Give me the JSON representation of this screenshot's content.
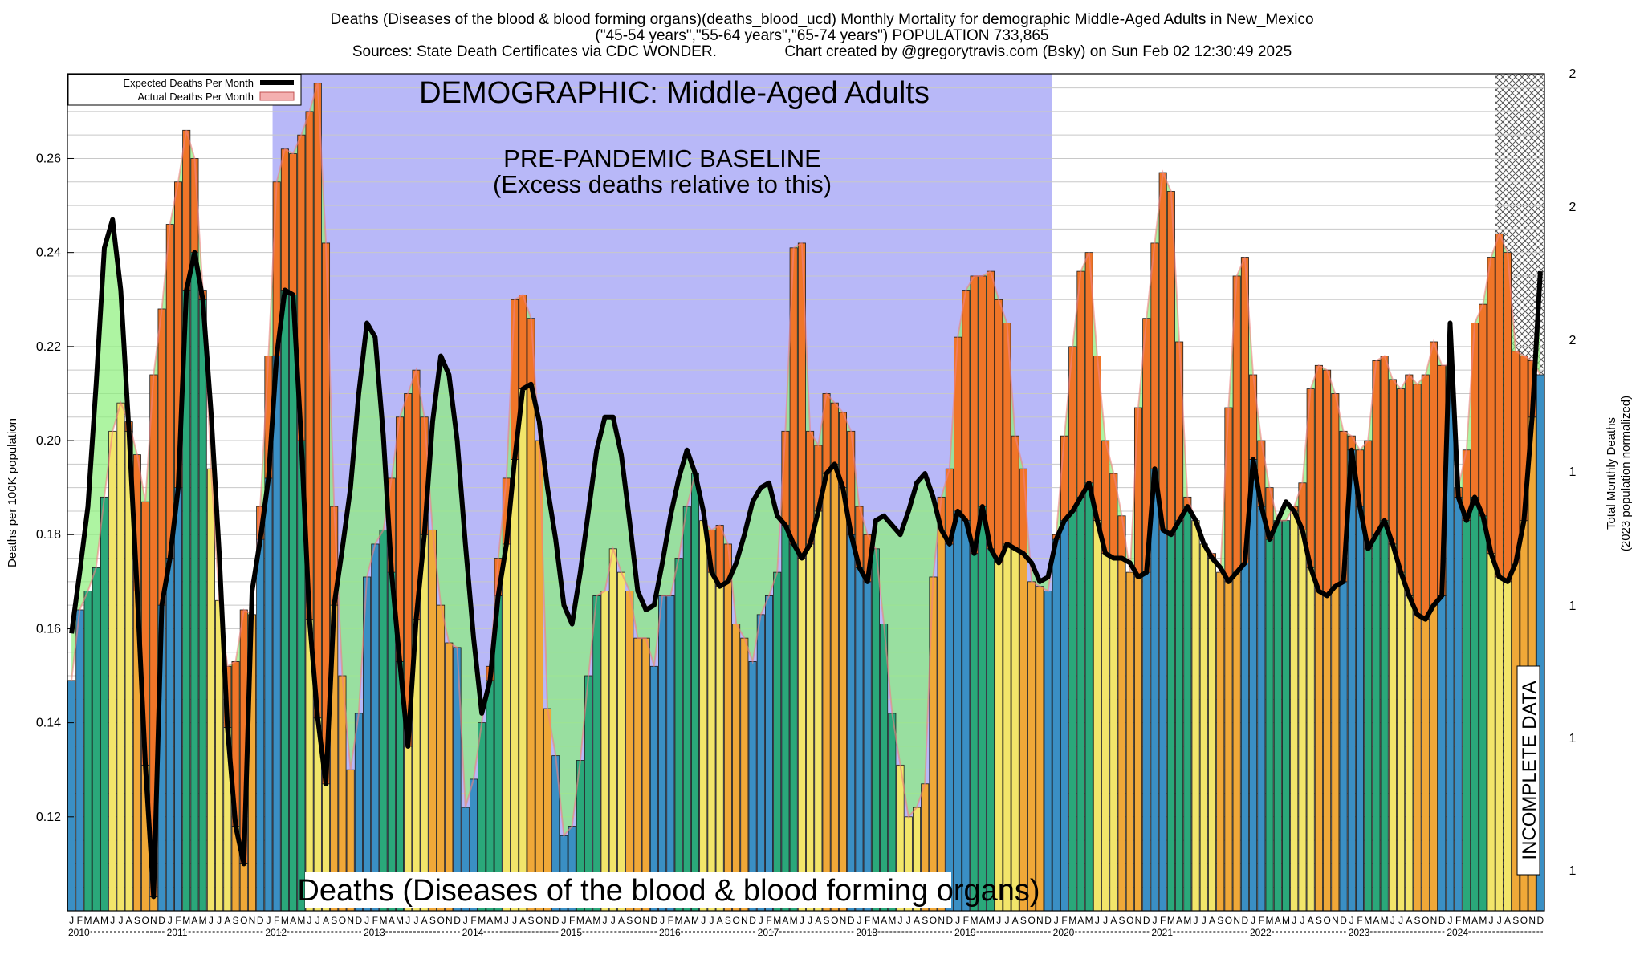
{
  "header": {
    "line1": "Deaths (Diseases of the blood & blood forming organs)(deaths_blood_ucd) Monthly Mortality for demographic Middle-Aged Adults in New_Mexico",
    "line2": "(\"45-54 years\",\"55-64 years\",\"65-74 years\") POPULATION 733,865",
    "line3": "Sources: State Death Certificates via CDC WONDER.                Chart created by @gregorytravis.com (Bsky) on Sun Feb 02 12:30:49 2025"
  },
  "chart_data": {
    "type": "bar",
    "title": "DEMOGRAPHIC: Middle-Aged Adults",
    "baseline_label_1": "PRE-PANDEMIC BASELINE",
    "baseline_label_2": "(Excess deaths relative to this)",
    "bottom_label": "Deaths (Diseases of the blood & blood forming organs)",
    "incomplete_label": "INCOMPLETE DATA",
    "ylabel": "Deaths per 100K population",
    "y2label_1": "Total Monthly Deaths",
    "y2label_2": "(2023 population normalized)",
    "ylim": [
      0.1,
      0.278
    ],
    "yticks": [
      "0.12",
      "0.14",
      "0.16",
      "0.18",
      "0.20",
      "0.22",
      "0.24",
      "0.26"
    ],
    "y2ticks": [
      "1",
      "1",
      "1",
      "1",
      "2",
      "2",
      "2"
    ],
    "grid": true,
    "legend_position": "top-left",
    "legend": {
      "expected": "Expected Deaths Per Month",
      "actual": "Actual Deaths Per Month"
    },
    "month_letters": [
      "J",
      "F",
      "M",
      "A",
      "M",
      "J",
      "J",
      "A",
      "S",
      "O",
      "N",
      "D"
    ],
    "years": [
      "2010",
      "2011",
      "2012",
      "2013",
      "2014",
      "2015",
      "2016",
      "2017",
      "2018",
      "2019",
      "2020",
      "2021",
      "2022",
      "2023",
      "2024"
    ],
    "baseline_period": [
      "2012-02",
      "2019-12"
    ],
    "incomplete_period": [
      "2024-07",
      "2024-12"
    ],
    "season_colors": {
      "winter": "#3a8fc4",
      "spring": "#2aa87a",
      "summer": "#f2e56a",
      "fall": "#f0a838",
      "above_expected": "#f07528",
      "below_expected": "#8bf07a",
      "baseline_shade": "#b8b8f8"
    },
    "series": [
      {
        "name": "Actual Deaths Per Month",
        "values": [
          0.149,
          0.164,
          0.168,
          0.173,
          0.188,
          0.202,
          0.208,
          0.204,
          0.197,
          0.187,
          0.214,
          0.228,
          0.246,
          0.255,
          0.266,
          0.26,
          0.232,
          0.194,
          0.166,
          0.152,
          0.153,
          0.164,
          0.163,
          0.186,
          0.218,
          0.255,
          0.262,
          0.261,
          0.265,
          0.27,
          0.276,
          0.242,
          0.186,
          0.15,
          0.13,
          0.142,
          0.171,
          0.178,
          0.181,
          0.192,
          0.205,
          0.21,
          0.215,
          0.205,
          0.181,
          0.165,
          0.157,
          0.156,
          0.122,
          0.128,
          0.14,
          0.152,
          0.175,
          0.192,
          0.23,
          0.231,
          0.226,
          0.2,
          0.143,
          0.133,
          0.116,
          0.118,
          0.132,
          0.15,
          0.167,
          0.168,
          0.177,
          0.172,
          0.168,
          0.158,
          0.158,
          0.152,
          0.167,
          0.167,
          0.175,
          0.186,
          0.193,
          0.183,
          0.181,
          0.182,
          0.178,
          0.161,
          0.158,
          0.153,
          0.163,
          0.167,
          0.172,
          0.202,
          0.241,
          0.242,
          0.202,
          0.199,
          0.21,
          0.208,
          0.206,
          0.202,
          0.186,
          0.18,
          0.177,
          0.161,
          0.142,
          0.131,
          0.12,
          0.122,
          0.127,
          0.171,
          0.188,
          0.194,
          0.222,
          0.232,
          0.235,
          0.235,
          0.236,
          0.23,
          0.225,
          0.201,
          0.194,
          0.17,
          0.169,
          0.168,
          0.18,
          0.201,
          0.22,
          0.236,
          0.24,
          0.218,
          0.2,
          0.193,
          0.184,
          0.172,
          0.207,
          0.226,
          0.242,
          0.257,
          0.253,
          0.221,
          0.188,
          0.183,
          0.178,
          0.176,
          0.172,
          0.207,
          0.235,
          0.239,
          0.214,
          0.2,
          0.19,
          0.183,
          0.183,
          0.186,
          0.191,
          0.211,
          0.216,
          0.215,
          0.21,
          0.202,
          0.201,
          0.198,
          0.2,
          0.217,
          0.218,
          0.213,
          0.211,
          0.214,
          0.212,
          0.214,
          0.221,
          0.216,
          0.216,
          0.19,
          0.198,
          0.225,
          0.229,
          0.239,
          0.244,
          0.24,
          0.219,
          0.218,
          0.217,
          0.214
        ]
      },
      {
        "name": "Expected Deaths Per Month",
        "values": [
          0.159,
          0.172,
          0.186,
          0.212,
          0.241,
          0.247,
          0.232,
          0.202,
          0.168,
          0.131,
          0.103,
          0.165,
          0.175,
          0.19,
          0.232,
          0.24,
          0.23,
          0.206,
          0.176,
          0.139,
          0.118,
          0.11,
          0.168,
          0.179,
          0.192,
          0.218,
          0.232,
          0.231,
          0.2,
          0.162,
          0.141,
          0.127,
          0.165,
          0.177,
          0.19,
          0.21,
          0.225,
          0.222,
          0.201,
          0.172,
          0.153,
          0.135,
          0.162,
          0.18,
          0.204,
          0.218,
          0.214,
          0.2,
          0.178,
          0.158,
          0.142,
          0.149,
          0.167,
          0.178,
          0.196,
          0.211,
          0.212,
          0.204,
          0.19,
          0.179,
          0.165,
          0.161,
          0.172,
          0.185,
          0.198,
          0.205,
          0.205,
          0.197,
          0.183,
          0.168,
          0.164,
          0.165,
          0.174,
          0.184,
          0.192,
          0.198,
          0.193,
          0.185,
          0.172,
          0.169,
          0.17,
          0.174,
          0.18,
          0.187,
          0.19,
          0.191,
          0.184,
          0.182,
          0.178,
          0.175,
          0.178,
          0.185,
          0.193,
          0.195,
          0.19,
          0.18,
          0.173,
          0.17,
          0.183,
          0.184,
          0.182,
          0.18,
          0.185,
          0.191,
          0.193,
          0.188,
          0.181,
          0.178,
          0.185,
          0.183,
          0.176,
          0.186,
          0.177,
          0.174,
          0.178,
          0.177,
          0.176,
          0.174,
          0.17,
          0.171,
          0.179,
          0.183,
          0.185,
          0.188,
          0.191,
          0.183,
          0.176,
          0.175,
          0.175,
          0.174,
          0.171,
          0.172,
          0.194,
          0.181,
          0.18,
          0.183,
          0.186,
          0.183,
          0.178,
          0.175,
          0.173,
          0.17,
          0.172,
          0.174,
          0.196,
          0.186,
          0.179,
          0.183,
          0.187,
          0.185,
          0.181,
          0.173,
          0.168,
          0.167,
          0.169,
          0.17,
          0.198,
          0.186,
          0.177,
          0.18,
          0.183,
          0.178,
          0.172,
          0.167,
          0.163,
          0.162,
          0.165,
          0.167,
          0.225,
          0.188,
          0.183,
          0.188,
          0.184,
          0.176,
          0.171,
          0.17,
          0.174,
          0.183,
          0.205,
          0.236
        ]
      }
    ]
  }
}
